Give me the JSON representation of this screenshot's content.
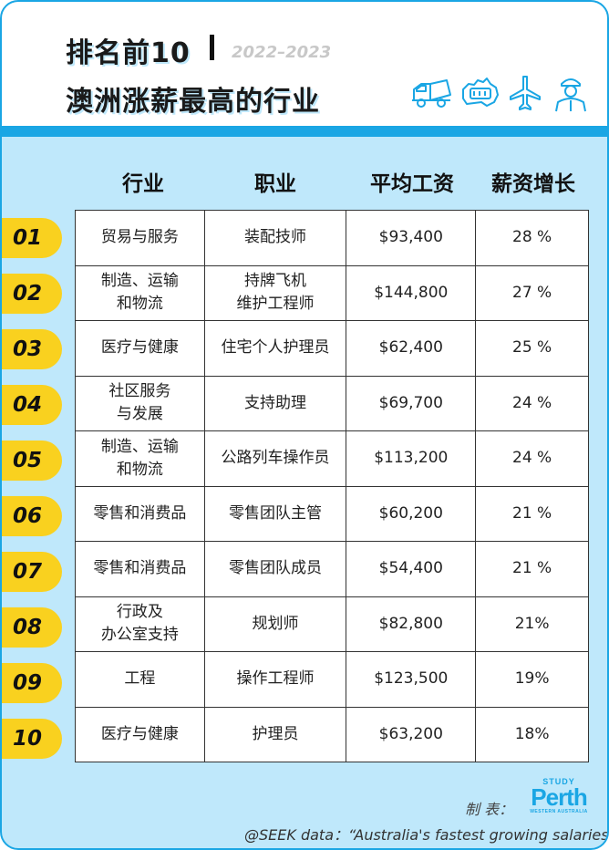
{
  "header": {
    "title_line1": "排名前10",
    "year": "2022–2023",
    "title_line2": "澳洲涨薪最高的行业"
  },
  "icons": [
    "truck-icon",
    "australia-map-icon",
    "airplane-icon",
    "worker-icon"
  ],
  "columns": [
    "行业",
    "职业",
    "平均工资",
    "薪资增长"
  ],
  "rows": [
    {
      "rank": "01",
      "industry": [
        "贸易与服务"
      ],
      "job": [
        "装配技师"
      ],
      "salary": "$93,400",
      "growth": "28 %"
    },
    {
      "rank": "02",
      "industry": [
        "制造、运输",
        "和物流"
      ],
      "job": [
        "持牌飞机",
        "维护工程师"
      ],
      "salary": "$144,800",
      "growth": "27 %"
    },
    {
      "rank": "03",
      "industry": [
        "医疗与健康"
      ],
      "job": [
        "住宅个人护理员"
      ],
      "salary": "$62,400",
      "growth": "25 %"
    },
    {
      "rank": "04",
      "industry": [
        "社区服务",
        "与发展"
      ],
      "job": [
        "支持助理"
      ],
      "salary": "$69,700",
      "growth": "24 %"
    },
    {
      "rank": "05",
      "industry": [
        "制造、运输",
        "和物流"
      ],
      "job": [
        "公路列车操作员"
      ],
      "salary": "$113,200",
      "growth": "24 %"
    },
    {
      "rank": "06",
      "industry": [
        "零售和消费品"
      ],
      "job": [
        "零售团队主管"
      ],
      "salary": "$60,200",
      "growth": "21 %"
    },
    {
      "rank": "07",
      "industry": [
        "零售和消费品"
      ],
      "job": [
        "零售团队成员"
      ],
      "salary": "$54,400",
      "growth": "21 %"
    },
    {
      "rank": "08",
      "industry": [
        "行政及",
        "办公室支持"
      ],
      "job": [
        "规划师"
      ],
      "salary": "$82,800",
      "growth": "21%"
    },
    {
      "rank": "09",
      "industry": [
        "工程"
      ],
      "job": [
        "操作工程师"
      ],
      "salary": "$123,500",
      "growth": "19%"
    },
    {
      "rank": "10",
      "industry": [
        "医疗与健康"
      ],
      "job": [
        "护理员"
      ],
      "salary": "$63,200",
      "growth": "18%"
    }
  ],
  "footer": {
    "maker_label": "制 表：",
    "logo_top": "STUDY",
    "logo_main": "Perth",
    "logo_bottom": "WESTERN AUSTRALIA",
    "source": "@SEEK data：“Australia's fastest growing salaries”"
  },
  "colors": {
    "accent_blue": "#1aa6e4",
    "background": "#bfe8fb",
    "badge_yellow": "#f9d11f"
  }
}
